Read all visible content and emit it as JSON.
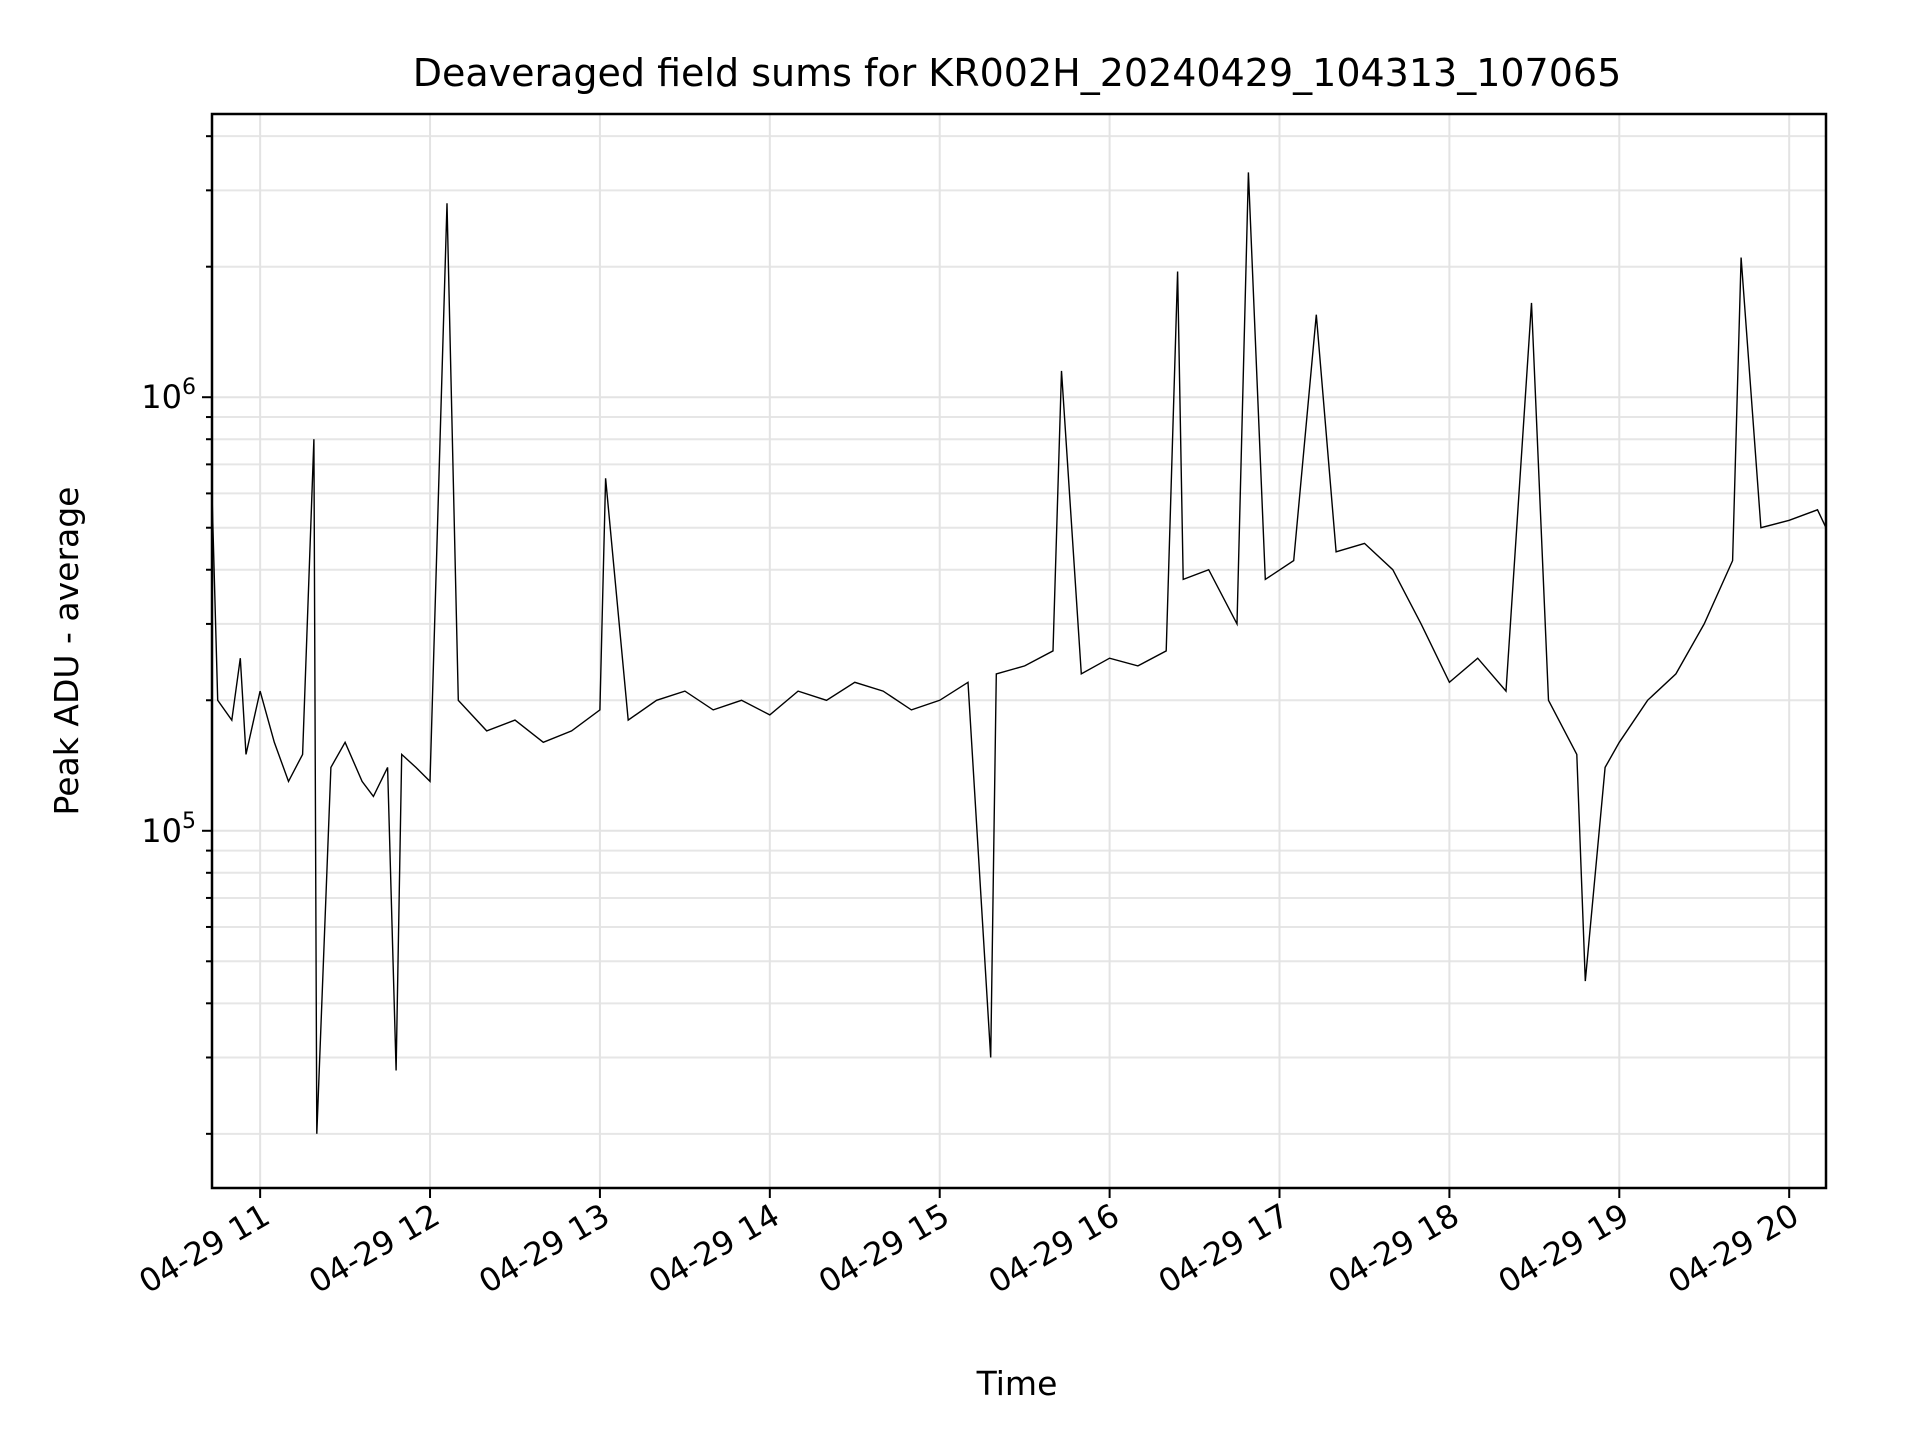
{
  "chart_data": {
    "type": "line",
    "title": "Deaveraged field sums for KR002H_20240429_104313_107065",
    "xlabel": "Time",
    "ylabel": "Peak ADU - average",
    "y_scale": "log",
    "grid": true,
    "xlim": [
      "2024-04-29 10:43",
      "2024-04-29 20:13"
    ],
    "ylim": [
      15000,
      4500000
    ],
    "x_ticks": [
      "04-29 11",
      "04-29 12",
      "04-29 13",
      "04-29 14",
      "04-29 15",
      "04-29 16",
      "04-29 17",
      "04-29 18",
      "04-29 19",
      "04-29 20"
    ],
    "y_ticks": [
      {
        "base": "10",
        "exp": "5"
      },
      {
        "base": "10",
        "exp": "6"
      }
    ],
    "series": [
      {
        "color": "#000000",
        "x": [
          "2024-04-29 10:43",
          "2024-04-29 10:45",
          "2024-04-29 10:50",
          "2024-04-29 10:53",
          "2024-04-29 10:55",
          "2024-04-29 11:00",
          "2024-04-29 11:05",
          "2024-04-29 11:10",
          "2024-04-29 11:15",
          "2024-04-29 11:19",
          "2024-04-29 11:20",
          "2024-04-29 11:25",
          "2024-04-29 11:30",
          "2024-04-29 11:36",
          "2024-04-29 11:40",
          "2024-04-29 11:45",
          "2024-04-29 11:48",
          "2024-04-29 11:50",
          "2024-04-29 11:55",
          "2024-04-29 12:00",
          "2024-04-29 12:06",
          "2024-04-29 12:10",
          "2024-04-29 12:20",
          "2024-04-29 12:30",
          "2024-04-29 12:40",
          "2024-04-29 12:50",
          "2024-04-29 13:00",
          "2024-04-29 13:02",
          "2024-04-29 13:10",
          "2024-04-29 13:20",
          "2024-04-29 13:30",
          "2024-04-29 13:40",
          "2024-04-29 13:50",
          "2024-04-29 14:00",
          "2024-04-29 14:10",
          "2024-04-29 14:20",
          "2024-04-29 14:30",
          "2024-04-29 14:40",
          "2024-04-29 14:50",
          "2024-04-29 15:00",
          "2024-04-29 15:10",
          "2024-04-29 15:18",
          "2024-04-29 15:20",
          "2024-04-29 15:30",
          "2024-04-29 15:40",
          "2024-04-29 15:43",
          "2024-04-29 15:50",
          "2024-04-29 16:00",
          "2024-04-29 16:10",
          "2024-04-29 16:20",
          "2024-04-29 16:24",
          "2024-04-29 16:26",
          "2024-04-29 16:35",
          "2024-04-29 16:45",
          "2024-04-29 16:49",
          "2024-04-29 16:55",
          "2024-04-29 17:05",
          "2024-04-29 17:13",
          "2024-04-29 17:20",
          "2024-04-29 17:30",
          "2024-04-29 17:40",
          "2024-04-29 17:50",
          "2024-04-29 18:00",
          "2024-04-29 18:10",
          "2024-04-29 18:20",
          "2024-04-29 18:29",
          "2024-04-29 18:35",
          "2024-04-29 18:45",
          "2024-04-29 18:48",
          "2024-04-29 18:55",
          "2024-04-29 19:00",
          "2024-04-29 19:10",
          "2024-04-29 19:20",
          "2024-04-29 19:30",
          "2024-04-29 19:40",
          "2024-04-29 19:43",
          "2024-04-29 19:50",
          "2024-04-29 20:00",
          "2024-04-29 20:10",
          "2024-04-29 20:13"
        ],
        "y": [
          600000,
          200000,
          180000,
          250000,
          150000,
          210000,
          160000,
          130000,
          150000,
          800000,
          20000,
          140000,
          160000,
          130000,
          120000,
          140000,
          28000,
          150000,
          140000,
          130000,
          2800000,
          200000,
          170000,
          180000,
          160000,
          170000,
          190000,
          650000,
          180000,
          200000,
          210000,
          190000,
          200000,
          185000,
          210000,
          200000,
          220000,
          210000,
          190000,
          200000,
          220000,
          30000,
          230000,
          240000,
          260000,
          1150000,
          230000,
          250000,
          240000,
          260000,
          1950000,
          380000,
          400000,
          300000,
          3300000,
          380000,
          420000,
          1550000,
          440000,
          460000,
          400000,
          300000,
          220000,
          250000,
          210000,
          1650000,
          200000,
          150000,
          45000,
          140000,
          160000,
          200000,
          230000,
          300000,
          420000,
          2100000,
          500000,
          520000,
          550000,
          500000
        ]
      }
    ]
  }
}
